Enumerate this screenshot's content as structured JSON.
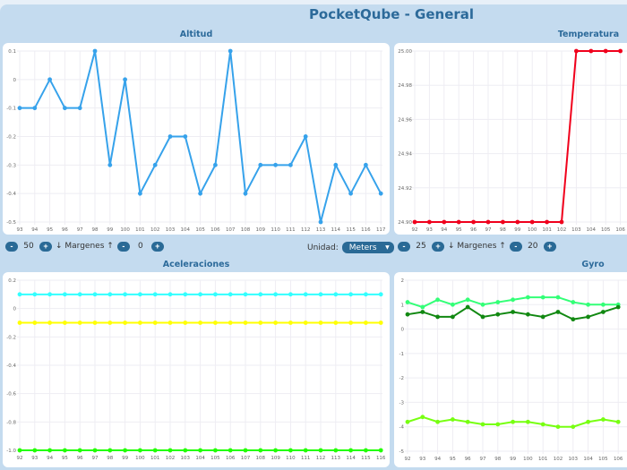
{
  "title": "PocketQube - General",
  "altitude": {
    "label": "Altitud",
    "controls": {
      "minus": "-",
      "plus": "+",
      "left_value": "50",
      "margins_label": "↓ Margenes ↑",
      "right_value": "0"
    },
    "unit_label": "Unidad:",
    "unit_value": "Meters"
  },
  "temperature": {
    "label": "Temperatura",
    "controls": {
      "minus": "-",
      "plus": "+",
      "left_value": "25",
      "margins_label": "↓ Margenes ↑",
      "right_value": "20"
    }
  },
  "accel": {
    "label": "Aceleraciones"
  },
  "gyro": {
    "label": "Gyro"
  },
  "chart_data": [
    {
      "id": "altitude",
      "type": "line",
      "title": "Altitud",
      "x": [
        93,
        94,
        95,
        96,
        97,
        98,
        99,
        100,
        101,
        102,
        103,
        104,
        105,
        106,
        107,
        108,
        109,
        110,
        111,
        112,
        113,
        114,
        115,
        116,
        117
      ],
      "series": [
        {
          "color": "#36a2eb",
          "values": [
            -0.1,
            -0.1,
            0,
            -0.1,
            -0.1,
            0.1,
            -0.3,
            0,
            -0.4,
            -0.3,
            -0.2,
            -0.2,
            -0.4,
            -0.3,
            0.1,
            -0.4,
            -0.3,
            -0.3,
            -0.3,
            -0.2,
            -0.5,
            -0.3,
            -0.4,
            -0.3,
            -0.4
          ]
        }
      ],
      "ylim": [
        -0.5,
        0.1
      ],
      "yticks": [
        0.1,
        0,
        -0.1,
        -0.2,
        -0.3,
        -0.4,
        -0.5
      ],
      "grid": true
    },
    {
      "id": "temperature",
      "type": "line",
      "title": "Temperatura",
      "x": [
        92,
        93,
        94,
        95,
        96,
        97,
        98,
        99,
        100,
        101,
        102,
        103,
        104,
        105,
        106
      ],
      "series": [
        {
          "color": "#f0001c",
          "values": [
            24.9,
            24.9,
            24.9,
            24.9,
            24.9,
            24.9,
            24.9,
            24.9,
            24.9,
            24.9,
            24.9,
            25.0,
            25.0,
            25.0,
            25.0
          ]
        }
      ],
      "ylim": [
        24.9,
        25.0
      ],
      "yticks": [
        "25.00",
        "24.98",
        "24.96",
        "24.94",
        "24.92",
        "24.90"
      ],
      "grid": true
    },
    {
      "id": "accel",
      "type": "line",
      "title": "Aceleraciones",
      "x": [
        92,
        93,
        94,
        95,
        96,
        97,
        98,
        99,
        100,
        101,
        102,
        103,
        104,
        105,
        106,
        107,
        108,
        109,
        110,
        111,
        112,
        113,
        114,
        115,
        116
      ],
      "series": [
        {
          "color": "#33ffff",
          "values": [
            0.1,
            0.1,
            0.1,
            0.1,
            0.1,
            0.1,
            0.1,
            0.1,
            0.1,
            0.1,
            0.1,
            0.1,
            0.1,
            0.1,
            0.1,
            0.1,
            0.1,
            0.1,
            0.1,
            0.1,
            0.1,
            0.1,
            0.1,
            0.1,
            0.1
          ]
        },
        {
          "color": "#ffff00",
          "values": [
            -0.1,
            -0.1,
            -0.1,
            -0.1,
            -0.1,
            -0.1,
            -0.1,
            -0.1,
            -0.1,
            -0.1,
            -0.1,
            -0.1,
            -0.1,
            -0.1,
            -0.1,
            -0.1,
            -0.1,
            -0.1,
            -0.1,
            -0.1,
            -0.1,
            -0.1,
            -0.1,
            -0.1,
            -0.1
          ]
        },
        {
          "color": "#22ff00",
          "values": [
            -1,
            -1,
            -1,
            -1,
            -1,
            -1,
            -1,
            -1,
            -1,
            -1,
            -1,
            -1,
            -1,
            -1,
            -1,
            -1,
            -1,
            -1,
            -1,
            -1,
            -1,
            -1,
            -1,
            -1,
            -1
          ]
        }
      ],
      "ylim": [
        -1.0,
        0.2
      ],
      "yticks": [
        "0.2",
        "0",
        "-0.2",
        "-0.4",
        "-0.6",
        "-0.8",
        "-1.0"
      ],
      "grid": true
    },
    {
      "id": "gyro",
      "type": "line",
      "title": "Gyro",
      "x": [
        92,
        93,
        94,
        95,
        96,
        97,
        98,
        99,
        100,
        101,
        102,
        103,
        104,
        105,
        106
      ],
      "series": [
        {
          "color": "#33ff77",
          "values": [
            1.1,
            0.9,
            1.2,
            1.0,
            1.2,
            1.0,
            1.1,
            1.2,
            1.3,
            1.3,
            1.3,
            1.1,
            1.0,
            1.0,
            1.0
          ]
        },
        {
          "color": "#118811",
          "values": [
            0.6,
            0.7,
            0.5,
            0.5,
            0.9,
            0.5,
            0.6,
            0.7,
            0.6,
            0.5,
            0.7,
            0.4,
            0.5,
            0.7,
            0.9
          ]
        },
        {
          "color": "#77ff11",
          "values": [
            -3.8,
            -3.6,
            -3.8,
            -3.7,
            -3.8,
            -3.9,
            -3.9,
            -3.8,
            -3.8,
            -3.9,
            -4.0,
            -4.0,
            -3.8,
            -3.7,
            -3.8
          ]
        }
      ],
      "ylim": [
        -5,
        2
      ],
      "yticks": [
        "2",
        "1",
        "0",
        "-1",
        "-2",
        "-3",
        "-4",
        "-5"
      ],
      "grid": true
    }
  ]
}
